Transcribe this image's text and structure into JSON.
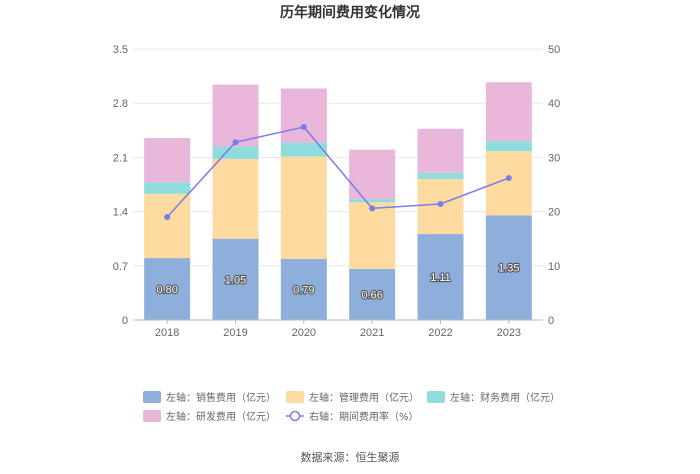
{
  "chart_data": {
    "type": "bar",
    "title": "历年期间费用变化情况",
    "categories": [
      "2018",
      "2019",
      "2020",
      "2021",
      "2022",
      "2023"
    ],
    "y_left": {
      "ticks": [
        "0",
        "0.7",
        "1.4",
        "2.1",
        "2.8",
        "3.5"
      ],
      "range": [
        0,
        3.5
      ]
    },
    "y_right": {
      "ticks": [
        "0",
        "10",
        "20",
        "30",
        "40",
        "50"
      ],
      "range": [
        0,
        50
      ]
    },
    "series": [
      {
        "name": "左轴：销售费用（亿元）",
        "kind": "bar",
        "color": "#8eafdb",
        "values": [
          0.8,
          1.05,
          0.79,
          0.66,
          1.11,
          1.35
        ],
        "labels": [
          "0.80",
          "1.05",
          "0.79",
          "0.66",
          "1.11",
          "1.35"
        ]
      },
      {
        "name": "左轴：管理费用（亿元）",
        "kind": "bar",
        "color": "#fddba0",
        "values": [
          0.83,
          1.03,
          1.32,
          0.86,
          0.71,
          0.83
        ]
      },
      {
        "name": "左轴：财务费用（亿元）",
        "kind": "bar",
        "color": "#8fdcdc",
        "values": [
          0.15,
          0.16,
          0.18,
          0.04,
          0.08,
          0.13
        ]
      },
      {
        "name": "左轴：研发费用（亿元）",
        "kind": "bar",
        "color": "#e8b7da",
        "values": [
          0.57,
          0.8,
          0.7,
          0.64,
          0.57,
          0.76
        ]
      },
      {
        "name": "右轴：期间费用率（%）",
        "kind": "line",
        "color": "#7b7bea",
        "values": [
          19.0,
          32.8,
          35.6,
          20.6,
          21.4,
          26.2
        ]
      }
    ],
    "legend": "bottom",
    "source": "数据来源：恒生聚源"
  }
}
